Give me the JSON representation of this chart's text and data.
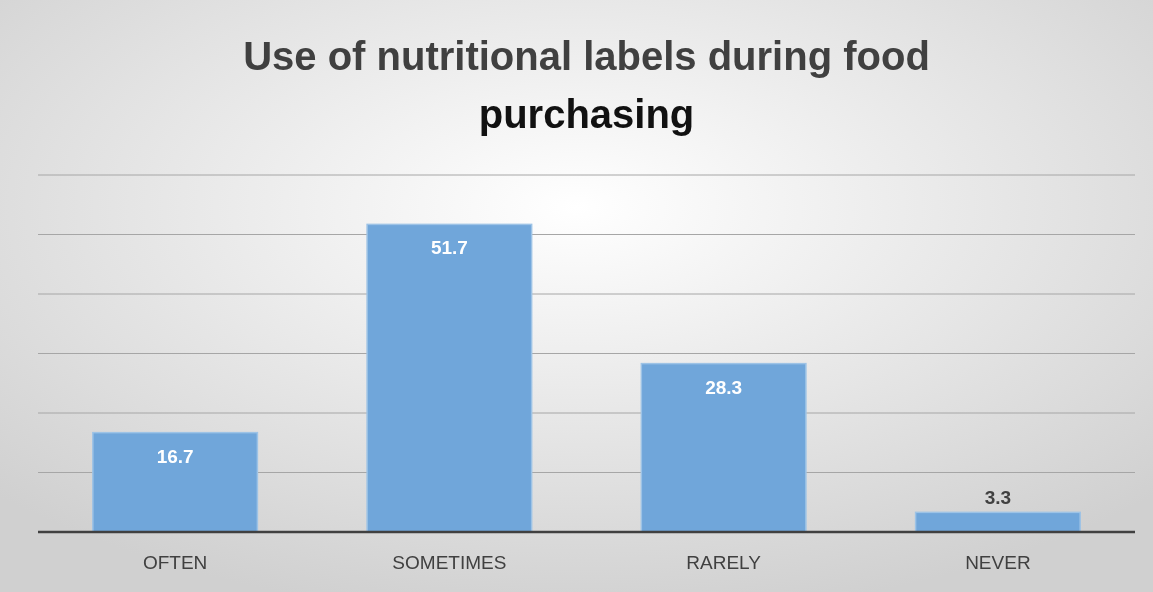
{
  "chart_data": {
    "type": "bar",
    "title": "Use of nutritional labels during food purchasing",
    "categories": [
      "OFTEN",
      "SOMETIMES",
      "RARELY",
      "NEVER"
    ],
    "values": [
      16.7,
      51.7,
      28.3,
      3.3
    ],
    "color": "#70a6da",
    "ylim": [
      0,
      60
    ],
    "yticks": [
      {
        "value": 0,
        "label": null
      },
      {
        "value": 10,
        "label": null
      },
      {
        "value": 20,
        "label": null
      },
      {
        "value": 30,
        "label": null
      },
      {
        "value": 40,
        "label": null
      },
      {
        "value": 50,
        "label": null
      },
      {
        "value": 60,
        "label": null
      }
    ],
    "tick_labels": "x",
    "grid": "y",
    "data_labels": true
  }
}
